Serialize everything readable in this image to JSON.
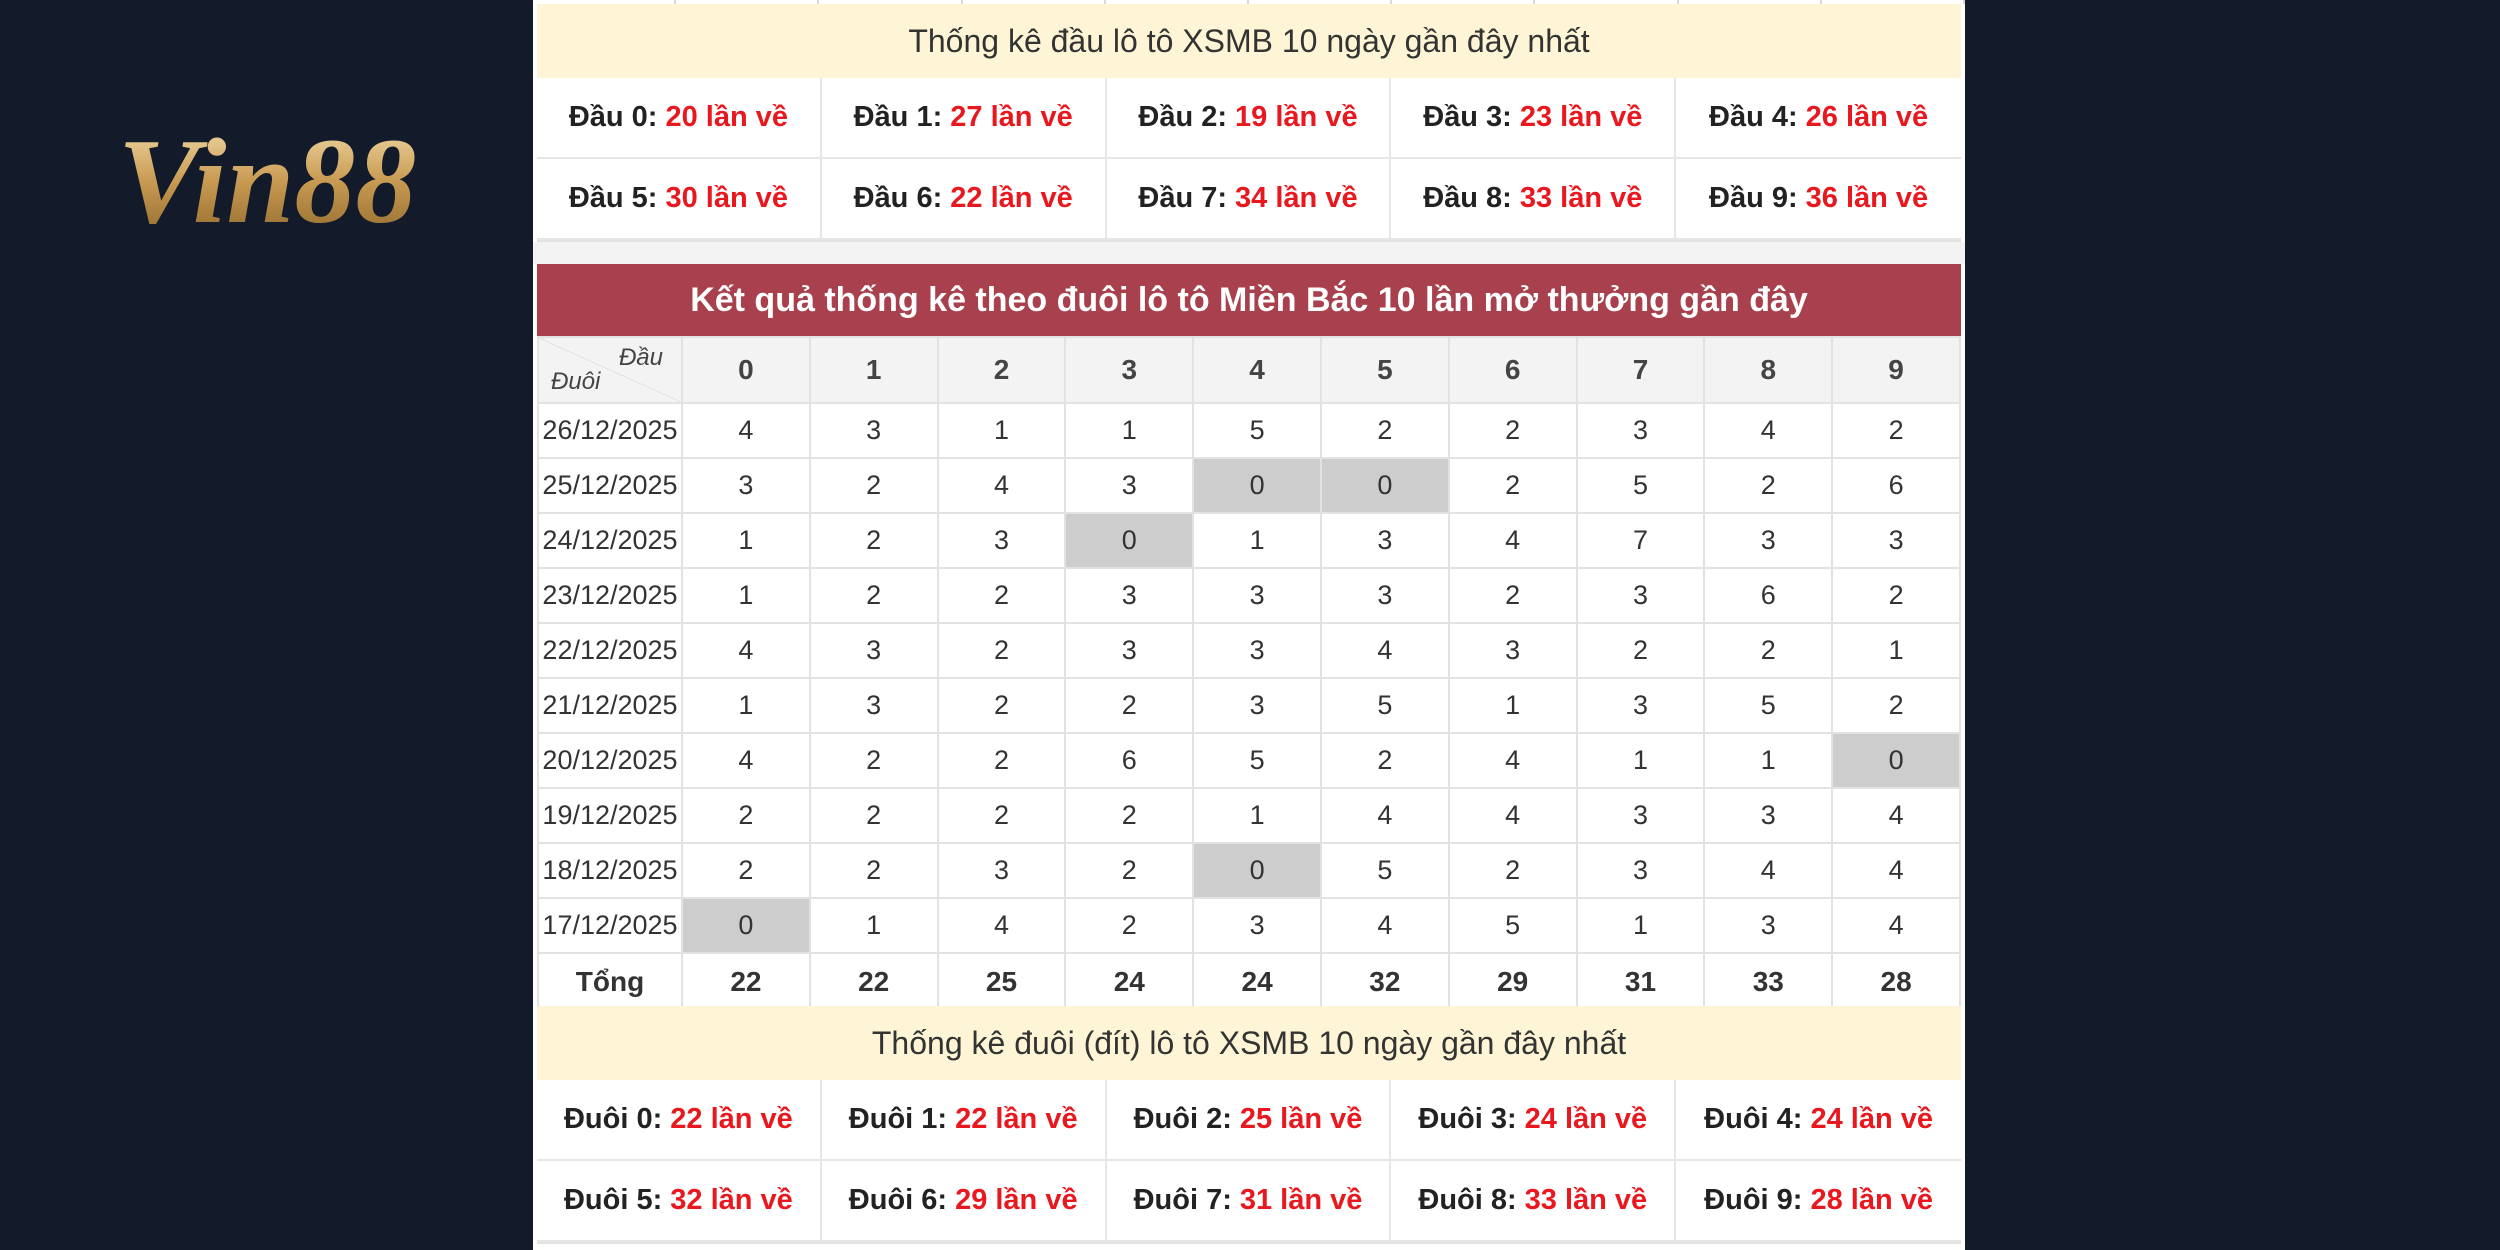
{
  "logo": {
    "text": "Vin88"
  },
  "head_stats": {
    "title": "Thống kê đầu lô tô XSMB 10 ngày gần đây nhất",
    "items": [
      {
        "label": "Đầu 0:",
        "count": "20 lần về"
      },
      {
        "label": "Đầu 1:",
        "count": "27 lần về"
      },
      {
        "label": "Đầu 2:",
        "count": "19 lần về"
      },
      {
        "label": "Đầu 3:",
        "count": "23 lần về"
      },
      {
        "label": "Đầu 4:",
        "count": "26 lần về"
      },
      {
        "label": "Đầu 5:",
        "count": "30 lần về"
      },
      {
        "label": "Đầu 6:",
        "count": "22 lần về"
      },
      {
        "label": "Đầu 7:",
        "count": "34 lần về"
      },
      {
        "label": "Đầu 8:",
        "count": "33 lần về"
      },
      {
        "label": "Đầu 9:",
        "count": "36 lần về"
      }
    ]
  },
  "tail_table": {
    "title": "Kết quả thống kê theo đuôi lô tô Miền Bắc 10 lần mở thưởng gần đây",
    "corner_top": "Đầu",
    "corner_bottom": "Đuôi",
    "columns": [
      "0",
      "1",
      "2",
      "3",
      "4",
      "5",
      "6",
      "7",
      "8",
      "9"
    ],
    "rows": [
      {
        "date": "26/12/2025",
        "values": [
          "4",
          "3",
          "1",
          "1",
          "5",
          "2",
          "2",
          "3",
          "4",
          "2"
        ]
      },
      {
        "date": "25/12/2025",
        "values": [
          "3",
          "2",
          "4",
          "3",
          "0",
          "0",
          "2",
          "5",
          "2",
          "6"
        ]
      },
      {
        "date": "24/12/2025",
        "values": [
          "1",
          "2",
          "3",
          "0",
          "1",
          "3",
          "4",
          "7",
          "3",
          "3"
        ]
      },
      {
        "date": "23/12/2025",
        "values": [
          "1",
          "2",
          "2",
          "3",
          "3",
          "3",
          "2",
          "3",
          "6",
          "2"
        ]
      },
      {
        "date": "22/12/2025",
        "values": [
          "4",
          "3",
          "2",
          "3",
          "3",
          "4",
          "3",
          "2",
          "2",
          "1"
        ]
      },
      {
        "date": "21/12/2025",
        "values": [
          "1",
          "3",
          "2",
          "2",
          "3",
          "5",
          "1",
          "3",
          "5",
          "2"
        ]
      },
      {
        "date": "20/12/2025",
        "values": [
          "4",
          "2",
          "2",
          "6",
          "5",
          "2",
          "4",
          "1",
          "1",
          "0"
        ]
      },
      {
        "date": "19/12/2025",
        "values": [
          "2",
          "2",
          "2",
          "2",
          "1",
          "4",
          "4",
          "3",
          "3",
          "4"
        ]
      },
      {
        "date": "18/12/2025",
        "values": [
          "2",
          "2",
          "3",
          "2",
          "0",
          "5",
          "2",
          "3",
          "4",
          "4"
        ]
      },
      {
        "date": "17/12/2025",
        "values": [
          "0",
          "1",
          "4",
          "2",
          "3",
          "4",
          "5",
          "1",
          "3",
          "4"
        ]
      }
    ],
    "total_label": "Tổng",
    "totals": [
      "22",
      "22",
      "25",
      "24",
      "24",
      "32",
      "29",
      "31",
      "33",
      "28"
    ]
  },
  "tail_stats": {
    "title": "Thống kê đuôi (đít) lô tô XSMB 10 ngày gần đây nhất",
    "items": [
      {
        "label": "Đuôi 0:",
        "count": "22 lần về"
      },
      {
        "label": "Đuôi 1:",
        "count": "22 lần về"
      },
      {
        "label": "Đuôi 2:",
        "count": "25 lần về"
      },
      {
        "label": "Đuôi 3:",
        "count": "24 lần về"
      },
      {
        "label": "Đuôi 4:",
        "count": "24 lần về"
      },
      {
        "label": "Đuôi 5:",
        "count": "32 lần về"
      },
      {
        "label": "Đuôi 6:",
        "count": "29 lần về"
      },
      {
        "label": "Đuôi 7:",
        "count": "31 lần về"
      },
      {
        "label": "Đuôi 8:",
        "count": "33 lần về"
      },
      {
        "label": "Đuôi 9:",
        "count": "28 lần về"
      }
    ]
  },
  "colors": {
    "background": "#131b2b",
    "title_bar": "#a8414d",
    "banner": "#fdf5d5",
    "count_red": "#e8181e",
    "zero_cell": "#cdcdcd"
  }
}
